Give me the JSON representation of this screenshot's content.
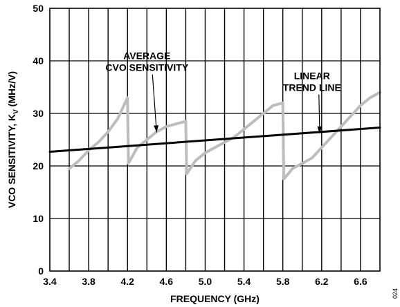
{
  "figure_id": "024",
  "chart_data": {
    "type": "line",
    "xlabel": "FREQUENCY (GHz)",
    "ylabel": "VCO SENSITIVITY, K",
    "ylabel_sub": "V",
    "ylabel_unit": " (MHz/V)",
    "xlim": [
      3.4,
      6.8
    ],
    "ylim": [
      0,
      50
    ],
    "x_ticks": [
      3.4,
      3.8,
      4.2,
      4.6,
      5.0,
      5.4,
      5.8,
      6.2,
      6.6
    ],
    "x_tick_labels": [
      "3.4",
      "3.8",
      "4.2",
      "4.6",
      "5.0",
      "5.4",
      "5.8",
      "6.2",
      "6.6"
    ],
    "y_ticks": [
      0,
      10,
      20,
      30,
      40,
      50
    ],
    "y_tick_labels": [
      "0",
      "10",
      "20",
      "30",
      "40",
      "50"
    ],
    "grid": true,
    "x_minor_step": 0.2,
    "series": [
      {
        "name": "AVERAGE CVO SENSITIVITY",
        "color": "#bdbdbd",
        "x": [
          3.6,
          3.7,
          3.8,
          3.9,
          4.0,
          4.1,
          4.2,
          4.21,
          4.3,
          4.4,
          4.5,
          4.6,
          4.7,
          4.8,
          4.81,
          4.9,
          5.0,
          5.1,
          5.2,
          5.3,
          5.4,
          5.5,
          5.6,
          5.7,
          5.8,
          5.81,
          5.9,
          6.0,
          6.1,
          6.2,
          6.3,
          6.4,
          6.5,
          6.6,
          6.7,
          6.8
        ],
        "y": [
          19.5,
          21.0,
          23.0,
          24.5,
          26.5,
          29.0,
          33.0,
          20.5,
          23.5,
          25.0,
          26.5,
          27.5,
          28.0,
          28.5,
          18.5,
          21.0,
          22.5,
          23.5,
          24.5,
          25.5,
          27.0,
          28.5,
          30.0,
          31.5,
          32.0,
          17.5,
          19.5,
          20.5,
          21.5,
          23.5,
          25.5,
          27.5,
          29.5,
          31.5,
          33.0,
          34.0
        ]
      },
      {
        "name": "LINEAR TREND LINE",
        "color": "#000000",
        "x": [
          3.4,
          6.8
        ],
        "y": [
          22.7,
          27.3
        ]
      }
    ],
    "annotations": [
      {
        "lines": [
          "AVERAGE",
          "CVO SENSITIVITY"
        ],
        "text_x": 4.4,
        "text_y": 40.3,
        "arrow_to": [
          4.5,
          26.4
        ]
      },
      {
        "lines": [
          "LINEAR",
          "TREND LINE"
        ],
        "text_x": 6.1,
        "text_y": 36.5,
        "arrow_to": [
          6.18,
          26.2
        ]
      }
    ]
  }
}
